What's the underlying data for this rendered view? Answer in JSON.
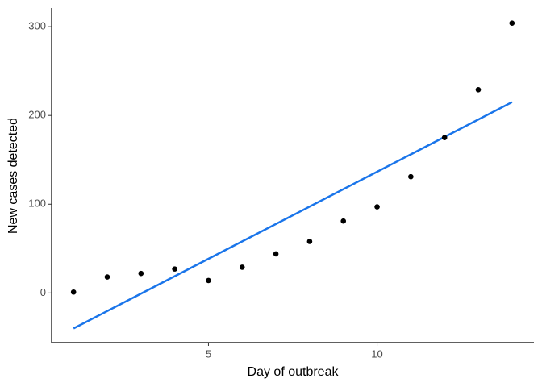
{
  "chart_data": {
    "type": "scatter",
    "x_label": "Day of outbreak",
    "y_label": "New cases detected",
    "x": [
      1,
      2,
      3,
      4,
      5,
      6,
      7,
      8,
      9,
      10,
      11,
      12,
      13,
      14
    ],
    "values": [
      1,
      18,
      22,
      27,
      14,
      29,
      44,
      58,
      81,
      97,
      131,
      175,
      229,
      304
    ],
    "color": "#000000",
    "trend": {
      "x": [
        1,
        14
      ],
      "values": [
        -40,
        215
      ],
      "color": "#1a75ea"
    },
    "xlim": [
      0.35,
      14.65
    ],
    "ylim": [
      -56,
      321
    ],
    "xticks": [
      5,
      10
    ],
    "yticks": [
      0,
      100,
      200,
      300
    ],
    "grid": false
  }
}
